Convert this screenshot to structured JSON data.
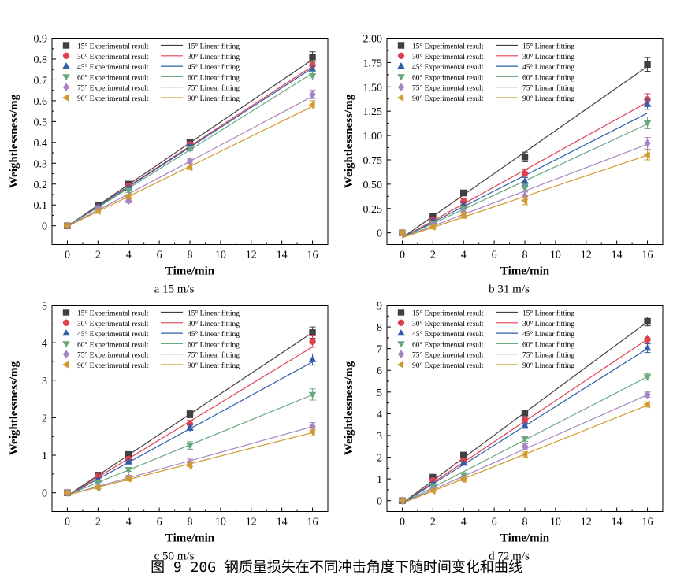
{
  "figure_caption": "图 9 20G 钢质量损失在不同冲击角度下随时间变化和曲线",
  "legend_experimental": [
    "15° Experimental result",
    "30° Experimental result",
    "45° Experimental result",
    "60° Experimental result",
    "75° Experimental result",
    "90° Experimental result"
  ],
  "legend_fitting": [
    "15° Linear fitting",
    "30° Linear fitting",
    "45° Linear fitting",
    "60° Linear fitting",
    "75° Linear fitting",
    "90° Linear fitting"
  ],
  "series_colors": [
    "#404040",
    "#e0414f",
    "#2e5fa8",
    "#6aa87e",
    "#a685c2",
    "#d09a2c"
  ],
  "series_markers": [
    "square",
    "circle",
    "triangle-up",
    "triangle-down",
    "diamond",
    "triangle-left"
  ],
  "chart_data": [
    {
      "type": "scatter",
      "subcaption": "a  15 m/s",
      "xlabel": "Time/min",
      "ylabel": "Weightlessness/mg",
      "xlim": [
        -1,
        17
      ],
      "ylim": [
        -0.09,
        0.9
      ],
      "xticks": [
        0,
        2,
        4,
        6,
        8,
        10,
        12,
        14,
        16
      ],
      "yticks": [
        0,
        0.1,
        0.2,
        0.3,
        0.4,
        0.5,
        0.6,
        0.7,
        0.8,
        0.9
      ],
      "ytick_labels": [
        "0",
        "0.1",
        "0.2",
        "0.3",
        "0.4",
        "0.5",
        "0.6",
        "0.7",
        "0.8",
        "0.9"
      ],
      "x": [
        0,
        2,
        4,
        8,
        16
      ],
      "series": [
        {
          "values": [
            0,
            0.1,
            0.2,
            0.4,
            0.81
          ],
          "errors": [
            0.01,
            0.01,
            0.01,
            0.01,
            0.025
          ],
          "fit": [
            -0.002,
            0.05
          ]
        },
        {
          "values": [
            0,
            0.09,
            0.19,
            0.39,
            0.77
          ],
          "errors": [
            0.01,
            0.01,
            0.01,
            0.01,
            0.02
          ],
          "fit": [
            -0.002,
            0.048
          ]
        },
        {
          "values": [
            0,
            0.09,
            0.18,
            0.38,
            0.75
          ],
          "errors": [
            0.01,
            0.01,
            0.01,
            0.01,
            0.02
          ],
          "fit": [
            -0.003,
            0.0475
          ]
        },
        {
          "values": [
            0,
            0.08,
            0.17,
            0.37,
            0.72
          ],
          "errors": [
            0.01,
            0.01,
            0.01,
            0.01,
            0.02
          ],
          "fit": [
            -0.004,
            0.046
          ]
        },
        {
          "values": [
            0,
            0.08,
            0.12,
            0.31,
            0.63
          ],
          "errors": [
            0.01,
            0.01,
            0.01,
            0.01,
            0.02
          ],
          "fit": [
            -0.003,
            0.039
          ]
        },
        {
          "values": [
            0,
            0.07,
            0.14,
            0.28,
            0.58
          ],
          "errors": [
            0.01,
            0.01,
            0.01,
            0.01,
            0.02
          ],
          "fit": [
            -0.003,
            0.036
          ]
        }
      ]
    },
    {
      "type": "scatter",
      "subcaption": "b  31 m/s",
      "xlabel": "Time/min",
      "ylabel": "Weightlessness/mg",
      "xlim": [
        -1,
        17
      ],
      "ylim": [
        -0.12,
        2.0
      ],
      "xticks": [
        0,
        2,
        4,
        6,
        8,
        10,
        12,
        14,
        16
      ],
      "yticks": [
        0,
        0.25,
        0.5,
        0.75,
        1.0,
        1.25,
        1.5,
        1.75,
        2.0
      ],
      "ytick_labels": [
        "0",
        "0.25",
        "0.50",
        "0.75",
        "1.00",
        "1.25",
        "1.50",
        "1.75",
        "2.00"
      ],
      "x": [
        0,
        2,
        4,
        8,
        16
      ],
      "series": [
        {
          "values": [
            0,
            0.17,
            0.41,
            0.78,
            1.73
          ],
          "errors": [
            0.03,
            0.02,
            0.03,
            0.05,
            0.07
          ],
          "fit": [
            -0.05,
            0.11
          ]
        },
        {
          "values": [
            0,
            0.13,
            0.32,
            0.61,
            1.37
          ],
          "errors": [
            0.03,
            0.02,
            0.03,
            0.04,
            0.06
          ],
          "fit": [
            -0.05,
            0.087
          ]
        },
        {
          "values": [
            0,
            0.12,
            0.28,
            0.53,
            1.32
          ],
          "errors": [
            0.03,
            0.02,
            0.03,
            0.04,
            0.05
          ],
          "fit": [
            -0.05,
            0.08
          ]
        },
        {
          "values": [
            0,
            0.1,
            0.24,
            0.46,
            1.13
          ],
          "errors": [
            0.03,
            0.02,
            0.03,
            0.04,
            0.06
          ],
          "fit": [
            -0.05,
            0.073
          ]
        },
        {
          "values": [
            0,
            0.08,
            0.21,
            0.38,
            0.92
          ],
          "errors": [
            0.03,
            0.02,
            0.03,
            0.04,
            0.06
          ],
          "fit": [
            -0.05,
            0.06
          ]
        },
        {
          "values": [
            0,
            0.06,
            0.18,
            0.33,
            0.8
          ],
          "errors": [
            0.03,
            0.02,
            0.03,
            0.04,
            0.05
          ],
          "fit": [
            -0.05,
            0.053
          ]
        }
      ]
    },
    {
      "type": "scatter",
      "subcaption": "c  50 m/s",
      "xlabel": "Time/min",
      "ylabel": "Weightlessness/mg",
      "xlim": [
        -1,
        17
      ],
      "ylim": [
        -0.5,
        5
      ],
      "xticks": [
        0,
        2,
        4,
        6,
        8,
        10,
        12,
        14,
        16
      ],
      "yticks": [
        0,
        1,
        2,
        3,
        4,
        5
      ],
      "ytick_labels": [
        "0",
        "1",
        "2",
        "3",
        "4",
        "5"
      ],
      "x": [
        0,
        2,
        4,
        8,
        16
      ],
      "series": [
        {
          "values": [
            0,
            0.47,
            1.02,
            2.1,
            4.27
          ],
          "errors": [
            0.03,
            0.04,
            0.05,
            0.1,
            0.15
          ],
          "fit": [
            -0.08,
            0.272
          ]
        },
        {
          "values": [
            0,
            0.43,
            0.9,
            1.83,
            4.03
          ],
          "errors": [
            0.03,
            0.04,
            0.05,
            0.1,
            0.15
          ],
          "fit": [
            -0.08,
            0.248
          ]
        },
        {
          "values": [
            0,
            0.34,
            0.82,
            1.72,
            3.55
          ],
          "errors": [
            0.03,
            0.04,
            0.05,
            0.1,
            0.15
          ],
          "fit": [
            -0.08,
            0.223
          ]
        },
        {
          "values": [
            0,
            0.27,
            0.62,
            1.26,
            2.62
          ],
          "errors": [
            0.03,
            0.04,
            0.05,
            0.1,
            0.15
          ],
          "fit": [
            -0.06,
            0.167
          ]
        },
        {
          "values": [
            0,
            0.15,
            0.41,
            0.8,
            1.77
          ],
          "errors": [
            0.03,
            0.04,
            0.05,
            0.1,
            0.1
          ],
          "fit": [
            -0.06,
            0.114
          ]
        },
        {
          "values": [
            0,
            0.14,
            0.37,
            0.73,
            1.62
          ],
          "errors": [
            0.03,
            0.04,
            0.05,
            0.1,
            0.1
          ],
          "fit": [
            -0.06,
            0.104
          ]
        }
      ]
    },
    {
      "type": "scatter",
      "subcaption": "d  72 m/s",
      "xlabel": "Time/min",
      "ylabel": "Weightlessness/mg",
      "xlim": [
        -1,
        17
      ],
      "ylim": [
        -0.5,
        9
      ],
      "xticks": [
        0,
        2,
        4,
        6,
        8,
        10,
        12,
        14,
        16
      ],
      "yticks": [
        0,
        1,
        2,
        3,
        4,
        5,
        6,
        7,
        8,
        9
      ],
      "ytick_labels": [
        "0",
        "1",
        "2",
        "3",
        "4",
        "5",
        "6",
        "7",
        "8",
        "9"
      ],
      "x": [
        0,
        2,
        4,
        8,
        16
      ],
      "series": [
        {
          "values": [
            0,
            1.08,
            2.1,
            4.03,
            8.25
          ],
          "errors": [
            0.05,
            0.06,
            0.07,
            0.12,
            0.2
          ],
          "fit": [
            -0.12,
            0.522
          ]
        },
        {
          "values": [
            0,
            0.93,
            1.85,
            3.72,
            7.42
          ],
          "errors": [
            0.05,
            0.06,
            0.07,
            0.12,
            0.2
          ],
          "fit": [
            -0.12,
            0.472
          ]
        },
        {
          "values": [
            0,
            0.78,
            1.72,
            3.45,
            7.02
          ],
          "errors": [
            0.05,
            0.06,
            0.07,
            0.12,
            0.2
          ],
          "fit": [
            -0.12,
            0.445
          ]
        },
        {
          "values": [
            0,
            0.68,
            1.2,
            2.85,
            5.7
          ],
          "errors": [
            0.05,
            0.06,
            0.07,
            0.12,
            0.15
          ],
          "fit": [
            -0.12,
            0.364
          ]
        },
        {
          "values": [
            0,
            0.52,
            1.0,
            2.5,
            4.88
          ],
          "errors": [
            0.05,
            0.06,
            0.07,
            0.12,
            0.12
          ],
          "fit": [
            -0.12,
            0.312
          ]
        },
        {
          "values": [
            0,
            0.45,
            0.98,
            2.13,
            4.43
          ],
          "errors": [
            0.05,
            0.06,
            0.07,
            0.12,
            0.12
          ],
          "fit": [
            -0.12,
            0.282
          ]
        }
      ]
    }
  ]
}
